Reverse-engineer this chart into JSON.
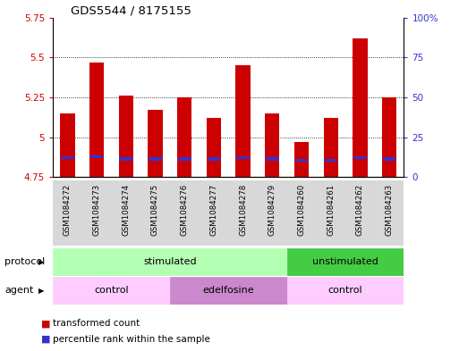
{
  "title": "GDS5544 / 8175155",
  "samples": [
    "GSM1084272",
    "GSM1084273",
    "GSM1084274",
    "GSM1084275",
    "GSM1084276",
    "GSM1084277",
    "GSM1084278",
    "GSM1084279",
    "GSM1084260",
    "GSM1084261",
    "GSM1084262",
    "GSM1084263"
  ],
  "bar_tops": [
    5.15,
    5.47,
    5.26,
    5.17,
    5.25,
    5.12,
    5.45,
    5.15,
    4.97,
    5.12,
    5.62,
    5.25
  ],
  "bar_base": 4.75,
  "blue_marker_vals": [
    4.875,
    4.88,
    4.865,
    4.865,
    4.865,
    4.865,
    4.875,
    4.865,
    4.855,
    4.855,
    4.875,
    4.865
  ],
  "ylim_left": [
    4.75,
    5.75
  ],
  "ylim_right": [
    0,
    100
  ],
  "yticks_left": [
    4.75,
    5.0,
    5.25,
    5.5,
    5.75
  ],
  "yticks_right": [
    0,
    25,
    50,
    75,
    100
  ],
  "ytick_labels_left": [
    "4.75",
    "5",
    "5.25",
    "5.5",
    "5.75"
  ],
  "ytick_labels_right": [
    "0",
    "25",
    "50",
    "75",
    "100%"
  ],
  "bar_color": "#cc0000",
  "blue_color": "#3333cc",
  "protocol_groups": [
    {
      "text": "stimulated",
      "bars": [
        0,
        1,
        2,
        3,
        4,
        5,
        6,
        7
      ],
      "color": "#b3ffb3"
    },
    {
      "text": "unstimulated",
      "bars": [
        8,
        9,
        10,
        11
      ],
      "color": "#44cc44"
    }
  ],
  "agent_groups": [
    {
      "text": "control",
      "bars": [
        0,
        1,
        2,
        3
      ],
      "color": "#ffccff"
    },
    {
      "text": "edelfosine",
      "bars": [
        4,
        5,
        6,
        7
      ],
      "color": "#cc88cc"
    },
    {
      "text": "control",
      "bars": [
        8,
        9,
        10,
        11
      ],
      "color": "#ffccff"
    }
  ],
  "protocol_text": "protocol",
  "agent_text": "agent",
  "legend_items": [
    {
      "label": "transformed count",
      "color": "#cc0000"
    },
    {
      "label": "percentile rank within the sample",
      "color": "#3333cc"
    }
  ],
  "bar_width": 0.5,
  "bg_color": "#ffffff",
  "tick_color_left": "#cc0000",
  "tick_color_right": "#3333cc",
  "xlim": [
    -0.5,
    11.5
  ]
}
